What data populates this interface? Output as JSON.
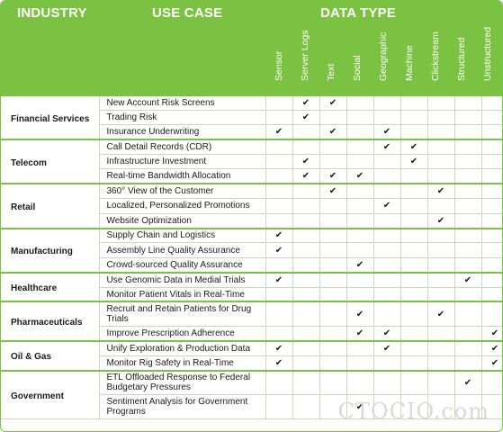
{
  "header": {
    "industry_label": "INDUSTRY",
    "use_case_label": "USE CASE",
    "data_type_label": "DATA TYPE",
    "data_types": [
      "Sensor",
      "Server Logs",
      "Text",
      "Social",
      "Geographic",
      "Machine",
      "Clickstream",
      "Structured",
      "Unstructured"
    ]
  },
  "check_glyph": "✔",
  "groups": [
    {
      "industry": "Financial Services",
      "rows": [
        {
          "use_case": "New Account Risk Screens",
          "checks": [
            0,
            1,
            1,
            0,
            0,
            0,
            0,
            0,
            0
          ]
        },
        {
          "use_case": "Trading Risk",
          "checks": [
            0,
            1,
            0,
            0,
            0,
            0,
            0,
            0,
            0
          ]
        },
        {
          "use_case": "Insurance Underwriting",
          "checks": [
            1,
            0,
            1,
            0,
            1,
            0,
            0,
            0,
            0
          ]
        }
      ]
    },
    {
      "industry": "Telecom",
      "rows": [
        {
          "use_case": "Call Detail Records (CDR)",
          "checks": [
            0,
            0,
            0,
            0,
            1,
            1,
            0,
            0,
            0
          ]
        },
        {
          "use_case": "Infrastructure Investment",
          "checks": [
            0,
            1,
            0,
            0,
            0,
            1,
            0,
            0,
            0
          ]
        },
        {
          "use_case": "Real-time Bandwidth Allocation",
          "checks": [
            0,
            1,
            1,
            1,
            0,
            0,
            0,
            0,
            0
          ]
        }
      ]
    },
    {
      "industry": "Retail",
      "rows": [
        {
          "use_case": "360° View of the Customer",
          "checks": [
            0,
            0,
            1,
            0,
            0,
            0,
            1,
            0,
            0
          ]
        },
        {
          "use_case": "Localized, Personalized Promotions",
          "checks": [
            0,
            0,
            0,
            0,
            1,
            0,
            0,
            0,
            0
          ]
        },
        {
          "use_case": "Website Optimization",
          "checks": [
            0,
            0,
            0,
            0,
            0,
            0,
            1,
            0,
            0
          ]
        }
      ]
    },
    {
      "industry": "Manufacturing",
      "rows": [
        {
          "use_case": "Supply Chain and Logistics",
          "checks": [
            1,
            0,
            0,
            0,
            0,
            0,
            0,
            0,
            0
          ]
        },
        {
          "use_case": "Assembly Line Quality Assurance",
          "checks": [
            1,
            0,
            0,
            0,
            0,
            0,
            0,
            0,
            0
          ]
        },
        {
          "use_case": "Crowd-sourced Quality Assurance",
          "checks": [
            0,
            0,
            0,
            1,
            0,
            0,
            0,
            0,
            0
          ]
        }
      ]
    },
    {
      "industry": "Healthcare",
      "rows": [
        {
          "use_case": "Use Genomic Data in Medial Trials",
          "checks": [
            1,
            0,
            0,
            0,
            0,
            0,
            0,
            1,
            0
          ]
        },
        {
          "use_case": "Monitor Patient Vitals in Real-Time",
          "checks": [
            0,
            0,
            0,
            0,
            0,
            0,
            0,
            0,
            0
          ]
        }
      ]
    },
    {
      "industry": "Pharmaceuticals",
      "rows": [
        {
          "use_case": "Recruit and Retain Patients for Drug Trials",
          "checks": [
            0,
            0,
            0,
            1,
            0,
            0,
            1,
            0,
            0
          ],
          "tall": true
        },
        {
          "use_case": "Improve Prescription Adherence",
          "checks": [
            0,
            0,
            0,
            1,
            1,
            0,
            0,
            0,
            1
          ]
        }
      ]
    },
    {
      "industry": "Oil & Gas",
      "rows": [
        {
          "use_case": "Unify Exploration & Production Data",
          "checks": [
            1,
            0,
            0,
            0,
            1,
            0,
            0,
            0,
            1
          ]
        },
        {
          "use_case": "Monitor Rig Safety in Real-Time",
          "checks": [
            1,
            0,
            0,
            0,
            0,
            0,
            0,
            0,
            1
          ]
        }
      ]
    },
    {
      "industry": "Government",
      "rows": [
        {
          "use_case": "ETL Offloaded Response to Federal Budgetary Pressures",
          "checks": [
            0,
            0,
            0,
            0,
            0,
            0,
            0,
            1,
            0
          ],
          "tall": true
        },
        {
          "use_case": "Sentiment Analysis for Government Programs",
          "checks": [
            0,
            0,
            0,
            1,
            0,
            0,
            0,
            0,
            0
          ],
          "tall": true
        }
      ]
    }
  ],
  "watermark": "CTOCIO.com"
}
